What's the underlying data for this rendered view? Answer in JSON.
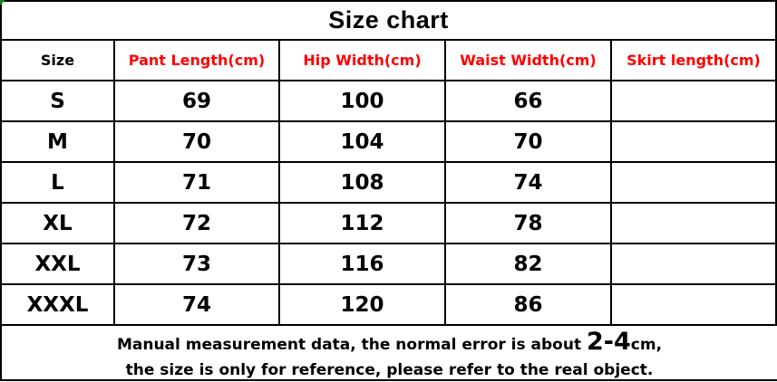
{
  "title": "Size chart",
  "chart_data": {
    "type": "table",
    "title": "Size chart",
    "columns": [
      "Size",
      "Pant Length(cm)",
      "Hip Width(cm)",
      "Waist Width(cm)",
      "Skirt length(cm)"
    ],
    "rows": [
      [
        "S",
        "69",
        "100",
        "66",
        ""
      ],
      [
        "M",
        "70",
        "104",
        "70",
        ""
      ],
      [
        "L",
        "71",
        "108",
        "74",
        ""
      ],
      [
        "XL",
        "72",
        "112",
        "78",
        ""
      ],
      [
        "XXL",
        "73",
        "116",
        "82",
        ""
      ],
      [
        "XXXL",
        "74",
        "120",
        "86",
        ""
      ]
    ],
    "notes": [
      "Manual measurement data, the normal error is about 2-4cm,",
      "the size is only for reference, please refer to the real object."
    ]
  },
  "footer": {
    "line1_prefix": "Manual measurement data, the normal error is about ",
    "line1_highlight": "2-4",
    "line1_suffix": "cm,",
    "line2": "the size is only for reference, please refer to the real object."
  },
  "colors": {
    "header_red": "#ff0000",
    "text_black": "#000000",
    "border_black": "#000000",
    "corner_green": "#1e801e"
  }
}
